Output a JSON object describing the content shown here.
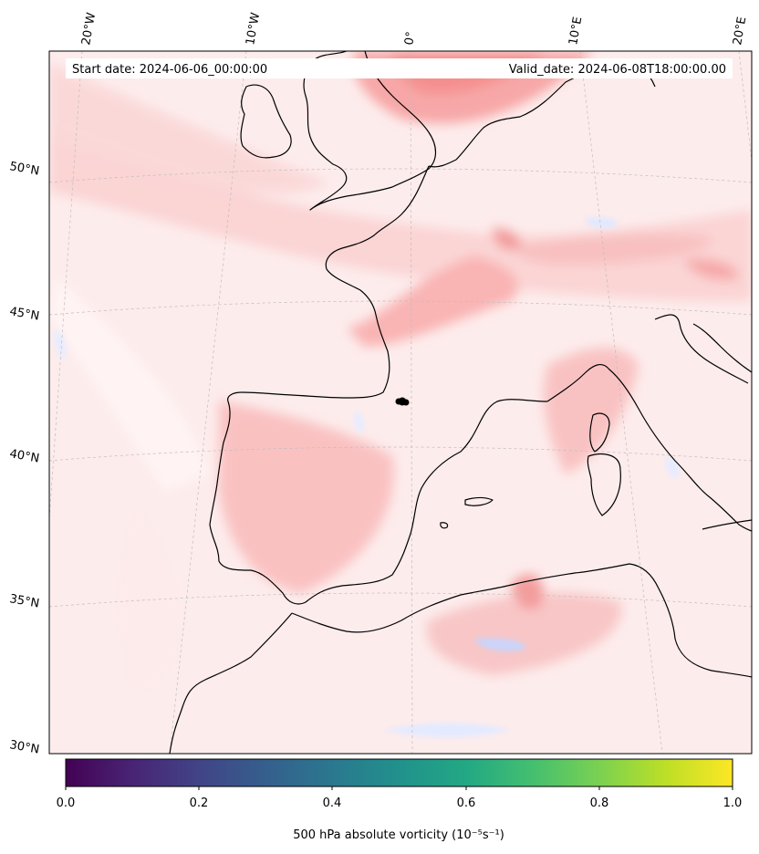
{
  "header": {
    "start_date": "Start date: 2024-06-06_00:00:00",
    "valid_date": "Valid_date: 2024-06-08T18:00:00.00"
  },
  "map": {
    "lon_labels": [
      "20°W",
      "10°W",
      "0°",
      "10°E",
      "20°E"
    ],
    "lat_labels": [
      "50°N",
      "45°N",
      "40°N",
      "35°N",
      "30°N"
    ],
    "colors": {
      "coastline": "#000000",
      "positive_light": "#fde0e0",
      "positive_mid": "#fbc4c4",
      "positive_strong": "#f79a9a",
      "negative_light": "#e6ecff",
      "negative_mid": "#c9d4fb",
      "ocean_base": "#fdeaea",
      "grid": "#b8b8b8"
    },
    "marker": "black-dot"
  },
  "colorbar": {
    "tick_labels": [
      "0.0",
      "0.2",
      "0.4",
      "0.6",
      "0.8",
      "1.0"
    ],
    "colormap": "viridis",
    "label": "500 hPa absolute vorticity (10⁻⁵s⁻¹)"
  }
}
